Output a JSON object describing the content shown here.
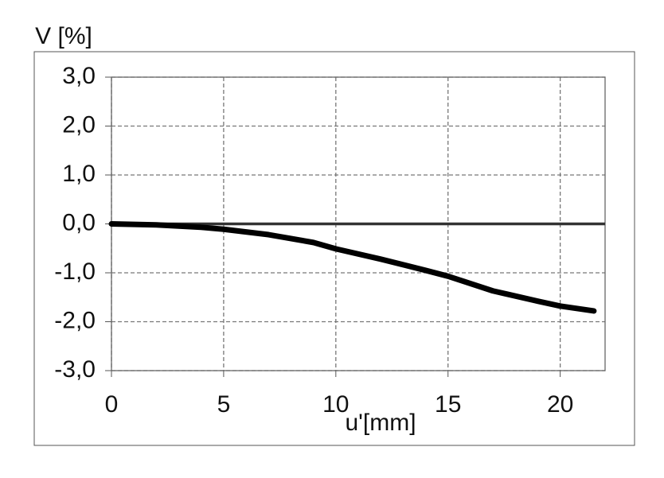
{
  "chart_data": {
    "type": "line",
    "y_label": "V [%]",
    "x_label": "u'[mm]",
    "x": [
      0,
      2,
      4,
      5,
      7,
      9,
      10,
      12,
      14,
      15,
      17,
      19,
      20,
      21.5
    ],
    "series": [
      {
        "name": "V",
        "color": "#000000",
        "values": [
          0,
          -0.02,
          -0.07,
          -0.11,
          -0.22,
          -0.38,
          -0.51,
          -0.72,
          -0.95,
          -1.07,
          -1.37,
          -1.58,
          -1.68,
          -1.78
        ]
      }
    ],
    "xlim": [
      0,
      22
    ],
    "xticks": [
      0,
      5,
      10,
      15,
      20
    ],
    "ylim": [
      -3,
      3
    ],
    "yticks": [
      {
        "value": 3,
        "label": "3,0"
      },
      {
        "value": 2,
        "label": "2,0"
      },
      {
        "value": 1,
        "label": "1,0"
      },
      {
        "value": 0,
        "label": "0,0"
      },
      {
        "value": -1,
        "label": "-1,0"
      },
      {
        "value": -2,
        "label": "-2,0"
      },
      {
        "value": -3,
        "label": "-3,0"
      }
    ],
    "grid": true
  }
}
